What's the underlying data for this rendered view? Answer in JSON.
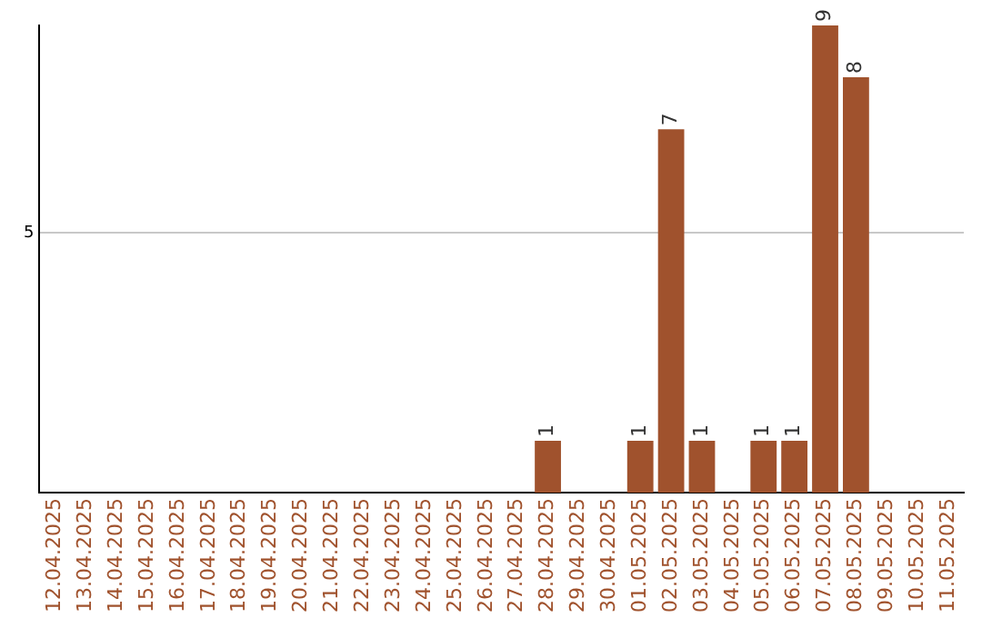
{
  "chart_data": {
    "type": "bar",
    "categories": [
      "12.04.2025",
      "13.04.2025",
      "14.04.2025",
      "15.04.2025",
      "16.04.2025",
      "17.04.2025",
      "18.04.2025",
      "19.04.2025",
      "20.04.2025",
      "21.04.2025",
      "22.04.2025",
      "23.04.2025",
      "24.04.2025",
      "25.04.2025",
      "26.04.2025",
      "27.04.2025",
      "28.04.2025",
      "29.04.2025",
      "30.04.2025",
      "01.05.2025",
      "02.05.2025",
      "03.05.2025",
      "04.05.2025",
      "05.05.2025",
      "06.05.2025",
      "07.05.2025",
      "08.05.2025",
      "09.05.2025",
      "10.05.2025",
      "11.05.2025"
    ],
    "values": [
      null,
      null,
      null,
      null,
      null,
      null,
      null,
      null,
      null,
      null,
      null,
      null,
      null,
      null,
      null,
      null,
      1,
      null,
      null,
      1,
      7,
      1,
      null,
      1,
      1,
      9,
      8,
      null,
      null,
      null
    ],
    "data_labels": true,
    "color": "#a0522d",
    "ylim": [
      0,
      9
    ],
    "yticks": [
      5
    ],
    "grid": "y",
    "legend": false
  }
}
